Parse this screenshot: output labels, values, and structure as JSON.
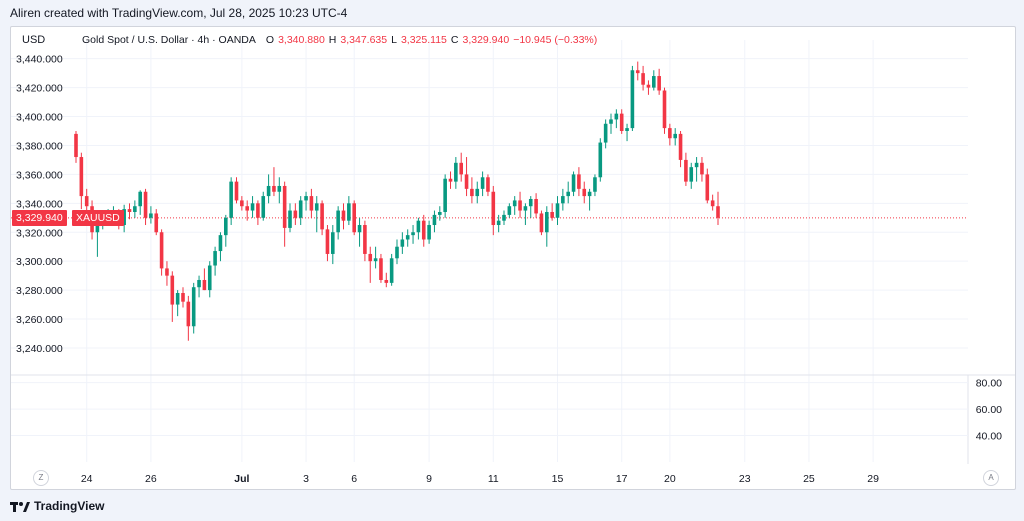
{
  "header": {
    "attribution": "Aliren created with TradingView.com, Jul 28, 2025 10:23 UTC-4"
  },
  "toolbar": {
    "currency": "USD"
  },
  "legend": {
    "symbol": "Gold Spot / U.S. Dollar · 4h · OANDA",
    "o_label": "O",
    "o_value": "3,340.880",
    "h_label": "H",
    "h_value": "3,347.635",
    "l_label": "L",
    "l_value": "3,325.115",
    "c_label": "C",
    "c_value": "3,329.940",
    "change": "−10.945 (−0.33%)"
  },
  "last_price": {
    "value": "3,329.940",
    "symbol": "XAUUSD"
  },
  "footer": {
    "brand": "TradingView",
    "zoom_btn": "Z",
    "auto_btn": "A"
  },
  "colors": {
    "up": "#089981",
    "down": "#f23645",
    "grid": "#f0f3fa",
    "text": "#131722"
  },
  "chart_data": {
    "type": "candlestick",
    "price_axis": {
      "ticks": [
        3440,
        3420,
        3400,
        3380,
        3360,
        3340,
        3320,
        3300,
        3280,
        3260,
        3240
      ],
      "tick_labels": [
        "3,440.000",
        "3,420.000",
        "3,400.000",
        "3,380.000",
        "3,360.000",
        "3,340.000",
        "3,320.000",
        "3,300.000",
        "3,280.000",
        "3,260.000",
        "3,240.000"
      ],
      "range": [
        3222,
        3446
      ]
    },
    "indicator_axis": {
      "ticks": [
        80,
        60,
        40
      ],
      "tick_labels": [
        "80.00",
        "60.00",
        "40.00"
      ],
      "range": [
        20,
        85
      ]
    },
    "x_ticks": [
      {
        "label": "24",
        "idx": 2
      },
      {
        "label": "26",
        "idx": 14
      },
      {
        "label": "Jul",
        "idx": 31
      },
      {
        "label": "3",
        "idx": 43
      },
      {
        "label": "6",
        "idx": 52
      },
      {
        "label": "9",
        "idx": 66
      },
      {
        "label": "11",
        "idx": 78
      },
      {
        "label": "15",
        "idx": 90
      },
      {
        "label": "17",
        "idx": 102
      },
      {
        "label": "20",
        "idx": 111
      },
      {
        "label": "23",
        "idx": 125
      },
      {
        "label": "25",
        "idx": 137
      },
      {
        "label": "29",
        "idx": 149
      }
    ],
    "candles": [
      [
        3388,
        3390,
        3368,
        3372
      ],
      [
        3372,
        3375,
        3336,
        3345
      ],
      [
        3345,
        3350,
        3332,
        3338
      ],
      [
        3338,
        3342,
        3315,
        3320
      ],
      [
        3320,
        3330,
        3303,
        3325
      ],
      [
        3325,
        3332,
        3322,
        3330
      ],
      [
        3330,
        3336,
        3325,
        3333
      ],
      [
        3333,
        3338,
        3328,
        3334
      ],
      [
        3334,
        3336,
        3322,
        3325
      ],
      [
        3325,
        3339,
        3320,
        3336
      ],
      [
        3336,
        3340,
        3329,
        3334
      ],
      [
        3334,
        3342,
        3330,
        3338
      ],
      [
        3338,
        3349,
        3332,
        3348
      ],
      [
        3348,
        3350,
        3325,
        3330
      ],
      [
        3330,
        3338,
        3326,
        3333
      ],
      [
        3333,
        3336,
        3318,
        3320
      ],
      [
        3320,
        3322,
        3290,
        3295
      ],
      [
        3295,
        3300,
        3283,
        3290
      ],
      [
        3290,
        3293,
        3258,
        3270
      ],
      [
        3270,
        3280,
        3262,
        3278
      ],
      [
        3278,
        3282,
        3268,
        3272
      ],
      [
        3272,
        3276,
        3245,
        3255
      ],
      [
        3255,
        3285,
        3250,
        3282
      ],
      [
        3282,
        3290,
        3275,
        3287
      ],
      [
        3287,
        3295,
        3280,
        3280
      ],
      [
        3280,
        3300,
        3275,
        3297
      ],
      [
        3297,
        3310,
        3290,
        3307
      ],
      [
        3307,
        3320,
        3300,
        3318
      ],
      [
        3318,
        3332,
        3310,
        3330
      ],
      [
        3330,
        3358,
        3325,
        3355
      ],
      [
        3355,
        3358,
        3340,
        3342
      ],
      [
        3342,
        3345,
        3335,
        3338
      ],
      [
        3338,
        3342,
        3328,
        3335
      ],
      [
        3335,
        3345,
        3330,
        3340
      ],
      [
        3340,
        3342,
        3325,
        3330
      ],
      [
        3330,
        3348,
        3328,
        3345
      ],
      [
        3345,
        3360,
        3340,
        3352
      ],
      [
        3352,
        3365,
        3345,
        3348
      ],
      [
        3348,
        3358,
        3340,
        3352
      ],
      [
        3352,
        3355,
        3310,
        3323
      ],
      [
        3323,
        3340,
        3320,
        3335
      ],
      [
        3335,
        3340,
        3325,
        3330
      ],
      [
        3330,
        3345,
        3325,
        3342
      ],
      [
        3342,
        3348,
        3335,
        3345
      ],
      [
        3345,
        3350,
        3330,
        3335
      ],
      [
        3335,
        3345,
        3320,
        3340
      ],
      [
        3340,
        3342,
        3318,
        3322
      ],
      [
        3322,
        3325,
        3300,
        3305
      ],
      [
        3305,
        3325,
        3298,
        3320
      ],
      [
        3320,
        3338,
        3315,
        3335
      ],
      [
        3335,
        3340,
        3322,
        3328
      ],
      [
        3328,
        3345,
        3325,
        3340
      ],
      [
        3340,
        3342,
        3318,
        3320
      ],
      [
        3320,
        3330,
        3310,
        3325
      ],
      [
        3325,
        3328,
        3300,
        3305
      ],
      [
        3305,
        3310,
        3285,
        3300
      ],
      [
        3300,
        3310,
        3295,
        3302
      ],
      [
        3302,
        3305,
        3285,
        3287
      ],
      [
        3287,
        3292,
        3282,
        3285
      ],
      [
        3285,
        3305,
        3283,
        3302
      ],
      [
        3302,
        3315,
        3298,
        3310
      ],
      [
        3310,
        3320,
        3305,
        3315
      ],
      [
        3315,
        3322,
        3310,
        3318
      ],
      [
        3318,
        3325,
        3312,
        3320
      ],
      [
        3320,
        3330,
        3315,
        3328
      ],
      [
        3328,
        3332,
        3310,
        3315
      ],
      [
        3315,
        3328,
        3312,
        3325
      ],
      [
        3325,
        3335,
        3320,
        3332
      ],
      [
        3332,
        3338,
        3328,
        3334
      ],
      [
        3334,
        3360,
        3330,
        3357
      ],
      [
        3357,
        3362,
        3350,
        3355
      ],
      [
        3355,
        3372,
        3350,
        3368
      ],
      [
        3368,
        3375,
        3355,
        3360
      ],
      [
        3360,
        3372,
        3345,
        3350
      ],
      [
        3350,
        3358,
        3340,
        3345
      ],
      [
        3345,
        3355,
        3340,
        3350
      ],
      [
        3350,
        3362,
        3345,
        3358
      ],
      [
        3358,
        3360,
        3345,
        3348
      ],
      [
        3348,
        3352,
        3318,
        3325
      ],
      [
        3325,
        3332,
        3320,
        3328
      ],
      [
        3328,
        3335,
        3325,
        3332
      ],
      [
        3332,
        3340,
        3330,
        3338
      ],
      [
        3338,
        3345,
        3332,
        3342
      ],
      [
        3342,
        3348,
        3330,
        3335
      ],
      [
        3335,
        3340,
        3325,
        3338
      ],
      [
        3338,
        3345,
        3330,
        3343
      ],
      [
        3343,
        3347,
        3330,
        3333
      ],
      [
        3333,
        3335,
        3318,
        3320
      ],
      [
        3320,
        3338,
        3310,
        3334
      ],
      [
        3334,
        3340,
        3328,
        3330
      ],
      [
        3330,
        3345,
        3325,
        3340
      ],
      [
        3340,
        3350,
        3335,
        3345
      ],
      [
        3345,
        3355,
        3340,
        3348
      ],
      [
        3348,
        3362,
        3345,
        3360
      ],
      [
        3360,
        3365,
        3345,
        3350
      ],
      [
        3350,
        3355,
        3340,
        3345
      ],
      [
        3345,
        3350,
        3335,
        3348
      ],
      [
        3348,
        3360,
        3345,
        3358
      ],
      [
        3358,
        3385,
        3355,
        3382
      ],
      [
        3382,
        3398,
        3378,
        3395
      ],
      [
        3395,
        3402,
        3388,
        3398
      ],
      [
        3398,
        3405,
        3392,
        3402
      ],
      [
        3402,
        3405,
        3388,
        3390
      ],
      [
        3390,
        3395,
        3383,
        3392
      ],
      [
        3392,
        3435,
        3390,
        3432
      ],
      [
        3432,
        3438,
        3425,
        3430
      ],
      [
        3430,
        3435,
        3418,
        3422
      ],
      [
        3422,
        3425,
        3415,
        3420
      ],
      [
        3420,
        3432,
        3418,
        3428
      ],
      [
        3428,
        3433,
        3415,
        3418
      ],
      [
        3418,
        3420,
        3388,
        3392
      ],
      [
        3392,
        3395,
        3380,
        3385
      ],
      [
        3385,
        3392,
        3380,
        3388
      ],
      [
        3388,
        3390,
        3365,
        3370
      ],
      [
        3370,
        3375,
        3352,
        3355
      ],
      [
        3355,
        3368,
        3350,
        3365
      ],
      [
        3365,
        3372,
        3355,
        3368
      ],
      [
        3368,
        3372,
        3355,
        3360
      ],
      [
        3360,
        3364,
        3340,
        3342
      ],
      [
        3342,
        3346,
        3335,
        3338
      ],
      [
        3338,
        3348,
        3325,
        3330
      ]
    ],
    "last": 3329.94
  }
}
